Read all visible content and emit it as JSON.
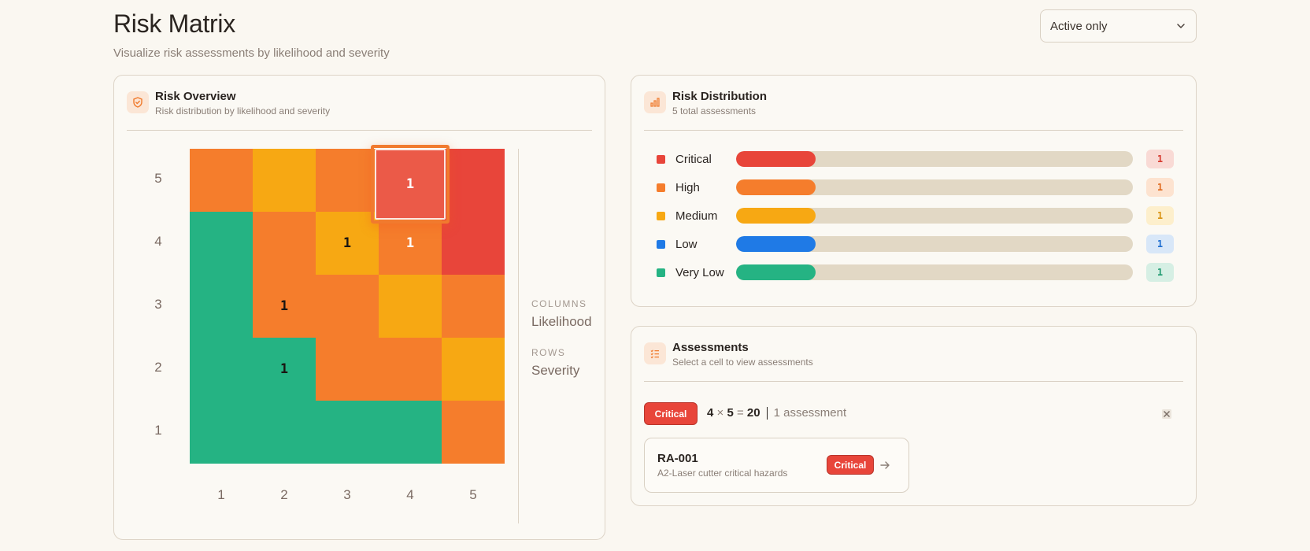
{
  "header": {
    "title": "Risk Matrix",
    "subtitle": "Visualize risk assessments by likelihood and severity"
  },
  "filter": {
    "selected": "Active only",
    "icon": "chevron-down-icon"
  },
  "overview": {
    "title": "Risk Overview",
    "subtitle": "Risk distribution by likelihood and severity",
    "icon": "shield-icon",
    "row_labels": [
      "5",
      "4",
      "3",
      "2",
      "1"
    ],
    "col_labels": [
      "1",
      "2",
      "3",
      "4",
      "5"
    ],
    "cells": [
      [
        "high",
        "medium",
        "high",
        "critical",
        "critical"
      ],
      [
        "very_low",
        "high",
        "medium",
        "high",
        "critical"
      ],
      [
        "very_low",
        "high",
        "high",
        "medium",
        "high"
      ],
      [
        "very_low",
        "very_low",
        "high",
        "high",
        "medium"
      ],
      [
        "very_low",
        "very_low",
        "very_low",
        "very_low",
        "high"
      ]
    ],
    "counts": [
      [
        "",
        "",
        "",
        "1",
        ""
      ],
      [
        "",
        "",
        "1",
        "1",
        ""
      ],
      [
        "",
        "1",
        "",
        "",
        ""
      ],
      [
        "",
        "1",
        "",
        "",
        ""
      ],
      [
        "",
        "",
        "",
        "",
        ""
      ]
    ],
    "selected_cell": {
      "likelihood": "4",
      "severity": "5",
      "count": "1"
    },
    "legend": {
      "columns_key": "COLUMNS",
      "columns_value": "Likelihood",
      "rows_key": "ROWS",
      "rows_value": "Severity"
    }
  },
  "colors": {
    "critical": "#e8453a",
    "high": "#f57d2c",
    "medium": "#f7a813",
    "low": "#1f7ae6",
    "very_low": "#25b383"
  },
  "distribution": {
    "title": "Risk Distribution",
    "subtitle": "5 total assessments",
    "icon": "bar-chart-icon",
    "rows": [
      {
        "label": "Critical",
        "count": "1",
        "fraction": 0.2,
        "color": "#e8453a",
        "badge_bg": "#f9dad5",
        "badge_fg": "#d6392e"
      },
      {
        "label": "High",
        "count": "1",
        "fraction": 0.2,
        "color": "#f57d2c",
        "badge_bg": "#fde3d0",
        "badge_fg": "#e06a1e"
      },
      {
        "label": "Medium",
        "count": "1",
        "fraction": 0.2,
        "color": "#f7a813",
        "badge_bg": "#fdefcc",
        "badge_fg": "#d99210"
      },
      {
        "label": "Low",
        "count": "1",
        "fraction": 0.2,
        "color": "#1f7ae6",
        "badge_bg": "#d8e7f8",
        "badge_fg": "#1d6dd0"
      },
      {
        "label": "Very Low",
        "count": "1",
        "fraction": 0.2,
        "color": "#25b383",
        "badge_bg": "#d6efe4",
        "badge_fg": "#1f9a70"
      }
    ]
  },
  "assessments": {
    "title": "Assessments",
    "subtitle": "Select a cell to view assessments",
    "icon": "checklist-icon",
    "selection_badge": "Critical",
    "formula_a": "4",
    "formula_x": "×",
    "formula_b": "5",
    "formula_eq": "=",
    "formula_result": "20",
    "count_text": "1 assessment",
    "items": [
      {
        "id": "RA-001",
        "description": "A2-Laser cutter critical hazards",
        "level": "Critical"
      }
    ]
  }
}
